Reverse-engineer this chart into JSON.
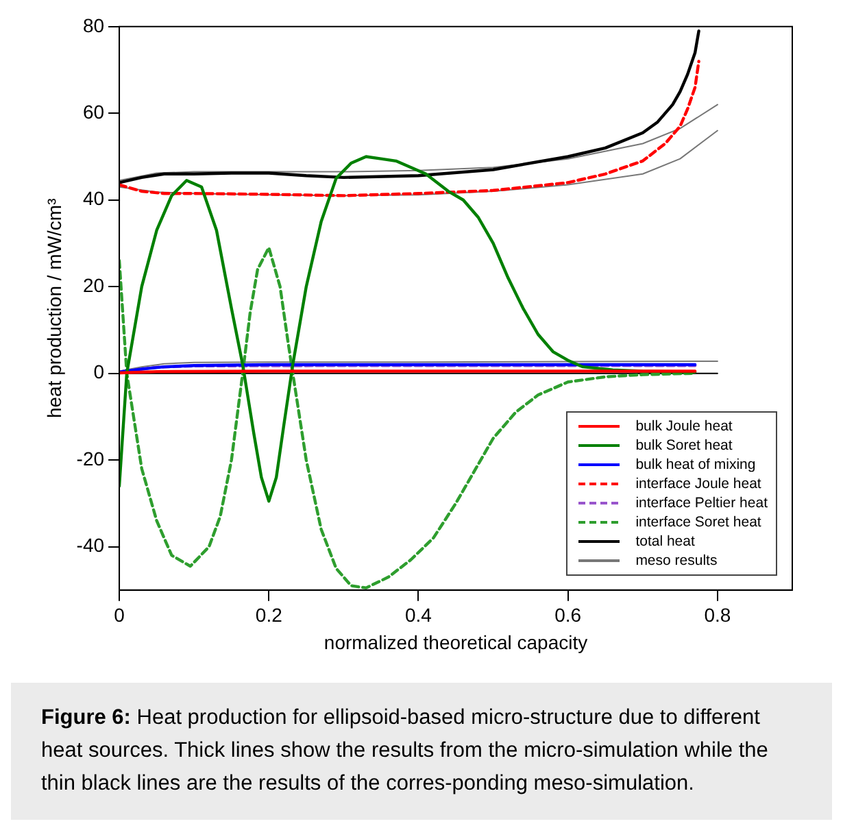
{
  "chart_data": {
    "type": "line",
    "xlabel": "normalized theoretical capacity",
    "ylabel": "heat production / mW/cm³",
    "xlim": [
      0,
      0.9
    ],
    "xticks": [
      0,
      0.2,
      0.4,
      0.6,
      0.8
    ],
    "ylim": [
      -50,
      80
    ],
    "yticks": [
      -40,
      -20,
      0,
      20,
      40,
      60,
      80
    ],
    "grid": false,
    "legend": "bottom right",
    "marker": "none",
    "annotations": [
      "Figure 6: Heat production for ellipsoid-based micro-structure due to different heat sources. Thick lines show the results from the micro-simulation while the thin black lines are the results of the corres-ponding meso-simulation."
    ],
    "series": [
      {
        "name": "bulk Joule heat",
        "color": "#ff0000",
        "line_style": "solid",
        "x": [
          0,
          0.05,
          0.2,
          0.4,
          0.6,
          0.77
        ],
        "values": [
          0.1,
          0.4,
          0.5,
          0.5,
          0.5,
          0.5
        ]
      },
      {
        "name": "bulk Soret heat",
        "color": "#008000",
        "line_style": "solid",
        "x": [
          0,
          0.01,
          0.03,
          0.05,
          0.07,
          0.09,
          0.11,
          0.13,
          0.15,
          0.165,
          0.18,
          0.19,
          0.2,
          0.21,
          0.22,
          0.232,
          0.25,
          0.27,
          0.29,
          0.31,
          0.33,
          0.35,
          0.37,
          0.39,
          0.41,
          0.44,
          0.46,
          0.48,
          0.5,
          0.52,
          0.54,
          0.56,
          0.58,
          0.6,
          0.62,
          0.66,
          0.7,
          0.77
        ],
        "values": [
          -26,
          0,
          20,
          33,
          41,
          44.5,
          43,
          33,
          15,
          2,
          -14,
          -24,
          -29.5,
          -24,
          -12,
          2,
          20,
          35,
          45,
          48.5,
          50,
          49.5,
          49,
          47.5,
          46,
          42,
          40,
          36,
          30,
          22,
          15,
          9,
          5,
          3,
          1.5,
          0.8,
          0.5,
          0.3
        ]
      },
      {
        "name": "bulk heat of mixing",
        "color": "#0000ff",
        "line_style": "solid",
        "x": [
          0,
          0.03,
          0.06,
          0.1,
          0.2,
          0.4,
          0.6,
          0.77
        ],
        "values": [
          0.3,
          1,
          1.5,
          1.8,
          2,
          2,
          2,
          2
        ]
      },
      {
        "name": "interface Joule heat",
        "color": "#ff0000",
        "line_style": "dashed",
        "x": [
          0,
          0.03,
          0.06,
          0.1,
          0.2,
          0.3,
          0.4,
          0.5,
          0.6,
          0.65,
          0.7,
          0.73,
          0.75,
          0.76,
          0.77,
          0.775
        ],
        "values": [
          43.5,
          42,
          41.5,
          41.5,
          41.3,
          41,
          41.5,
          42.2,
          44,
          46,
          49,
          53,
          57,
          61,
          66,
          72
        ]
      },
      {
        "name": "interface Peltier heat",
        "color": "#9955cc",
        "line_style": "dashed",
        "x": [
          0,
          0.05,
          0.1,
          0.3,
          0.5,
          0.77
        ],
        "values": [
          0.3,
          1.4,
          1.7,
          1.8,
          1.8,
          1.8
        ]
      },
      {
        "name": "interface Soret heat",
        "color": "#2e9e2e",
        "line_style": "dashed",
        "x": [
          0,
          0.01,
          0.03,
          0.05,
          0.07,
          0.095,
          0.12,
          0.135,
          0.15,
          0.165,
          0.175,
          0.185,
          0.2,
          0.215,
          0.225,
          0.232,
          0.25,
          0.27,
          0.29,
          0.31,
          0.33,
          0.36,
          0.39,
          0.42,
          0.45,
          0.48,
          0.5,
          0.53,
          0.56,
          0.6,
          0.65,
          0.7,
          0.77
        ],
        "values": [
          26,
          0,
          -22,
          -34,
          -42,
          -44.5,
          -40,
          -33,
          -20,
          0,
          14,
          24,
          29,
          20,
          8,
          0,
          -20,
          -36,
          -45,
          -49,
          -49.5,
          -47,
          -43,
          -38,
          -30,
          -21,
          -15,
          -9,
          -5,
          -2,
          -0.8,
          -0.3,
          0
        ]
      },
      {
        "name": "total heat",
        "color": "#000000",
        "line_style": "solid",
        "x": [
          0,
          0.03,
          0.06,
          0.1,
          0.15,
          0.2,
          0.25,
          0.3,
          0.4,
          0.5,
          0.6,
          0.65,
          0.7,
          0.72,
          0.74,
          0.75,
          0.76,
          0.77,
          0.775
        ],
        "values": [
          44,
          45.2,
          46,
          46,
          46.2,
          46.2,
          45.6,
          45.2,
          45.6,
          47,
          50,
          52,
          55.5,
          58,
          62,
          65,
          69,
          74,
          79
        ]
      },
      {
        "name": "meso results",
        "color": "#777777",
        "line_style": "solid",
        "x": [
          0,
          0.05,
          0.1,
          0.2,
          0.3,
          0.4,
          0.5,
          0.6,
          0.7,
          0.75,
          0.8
        ],
        "values": [
          44.5,
          46.2,
          46.5,
          46.5,
          46.5,
          46.8,
          47.5,
          49.5,
          53,
          56.5,
          62
        ]
      },
      {
        "color": "#777777",
        "line_style": "solid",
        "x": [
          0,
          0.05,
          0.1,
          0.2,
          0.3,
          0.4,
          0.5,
          0.6,
          0.7,
          0.75,
          0.8
        ],
        "values": [
          43,
          41.8,
          41.5,
          41.2,
          41,
          41.2,
          42,
          43.5,
          46,
          49.5,
          56
        ]
      },
      {
        "color": "#777777",
        "line_style": "solid",
        "x": [
          0,
          0.03,
          0.06,
          0.1,
          0.2,
          0.4,
          0.6,
          0.8
        ],
        "values": [
          0.5,
          1.5,
          2.2,
          2.5,
          2.6,
          2.6,
          2.7,
          2.8
        ]
      },
      {
        "color": "#000000",
        "line_style": "solid",
        "x": [
          0,
          0.2,
          0.4,
          0.6,
          0.8
        ],
        "values": [
          0,
          0,
          0,
          0,
          0
        ]
      }
    ]
  }
}
